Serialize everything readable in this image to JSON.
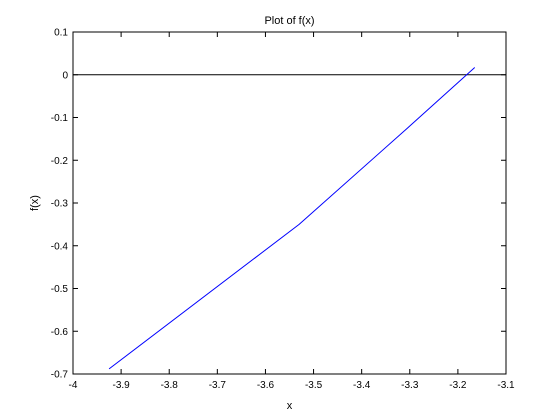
{
  "chart_data": {
    "type": "line",
    "title": "Plot of f(x)",
    "xlabel": "x",
    "ylabel": "f(x)",
    "xlim": [
      -4,
      -3.1
    ],
    "ylim": [
      -0.7,
      0.1
    ],
    "x_ticks": [
      -4,
      -3.9,
      -3.8,
      -3.7,
      -3.6,
      -3.5,
      -3.4,
      -3.3,
      -3.2,
      -3.1
    ],
    "x_tick_labels": [
      "-4",
      "-3.9",
      "-3.8",
      "-3.7",
      "-3.6",
      "-3.5",
      "-3.4",
      "-3.3",
      "-3.2",
      "-3.1"
    ],
    "y_ticks": [
      0.1,
      0,
      -0.1,
      -0.2,
      -0.3,
      -0.4,
      -0.5,
      -0.6,
      -0.7
    ],
    "y_tick_labels": [
      "0.1",
      "0",
      "-0.1",
      "-0.2",
      "-0.3",
      "-0.4",
      "-0.5",
      "-0.6",
      "-0.7"
    ],
    "grid": false,
    "series": [
      {
        "color": "#0000ff",
        "x": [
          -3.925,
          -3.53,
          -3.3,
          -3.165
        ],
        "y": [
          -0.688,
          -0.35,
          -0.12,
          0.017
        ]
      }
    ],
    "reference_lines": [
      {
        "orientation": "horizontal",
        "y": 0,
        "color": "#000000"
      }
    ]
  }
}
